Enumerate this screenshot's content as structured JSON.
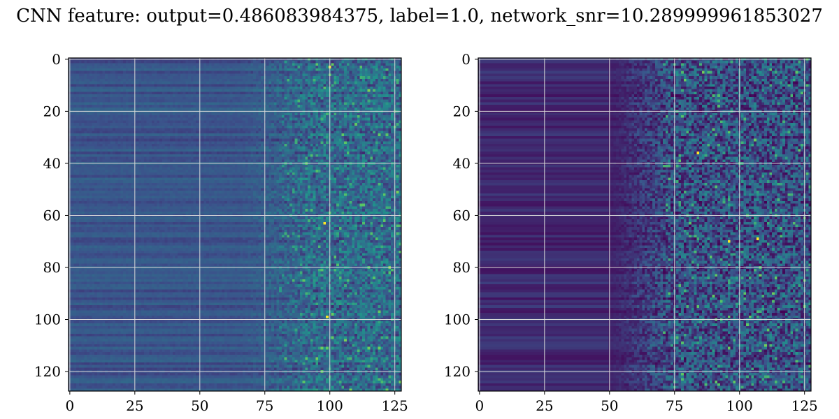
{
  "title": "CNN feature: output=0.486083984375, label=1.0, network_snr=10.289999961853027",
  "colormap": [
    "#440154",
    "#3b528b",
    "#21918c",
    "#5ec962",
    "#fde725"
  ],
  "grid_color": "#d8d8d8",
  "chart_data": [
    {
      "type": "heatmap",
      "rows": 128,
      "cols": 128,
      "origin": "upper",
      "xlim": [
        0,
        127
      ],
      "ylim": [
        127,
        0
      ],
      "x_ticks": [
        0,
        25,
        50,
        75,
        100,
        125
      ],
      "y_ticks": [
        0,
        20,
        40,
        60,
        80,
        100,
        120
      ],
      "grid": true,
      "hotspots": [
        {
          "row": 99,
          "col": 99
        },
        {
          "row": 3,
          "col": 100
        },
        {
          "row": 63,
          "col": 98
        }
      ]
    },
    {
      "type": "heatmap",
      "rows": 128,
      "cols": 128,
      "origin": "upper",
      "xlim": [
        0,
        127
      ],
      "ylim": [
        127,
        0
      ],
      "x_ticks": [
        0,
        25,
        50,
        75,
        100,
        125
      ],
      "y_ticks": [
        0,
        20,
        40,
        60,
        80,
        100,
        120
      ],
      "grid": true,
      "hotspots": [
        {
          "row": 36,
          "col": 84
        },
        {
          "row": 70,
          "col": 96
        },
        {
          "row": 69,
          "col": 107
        }
      ]
    }
  ]
}
